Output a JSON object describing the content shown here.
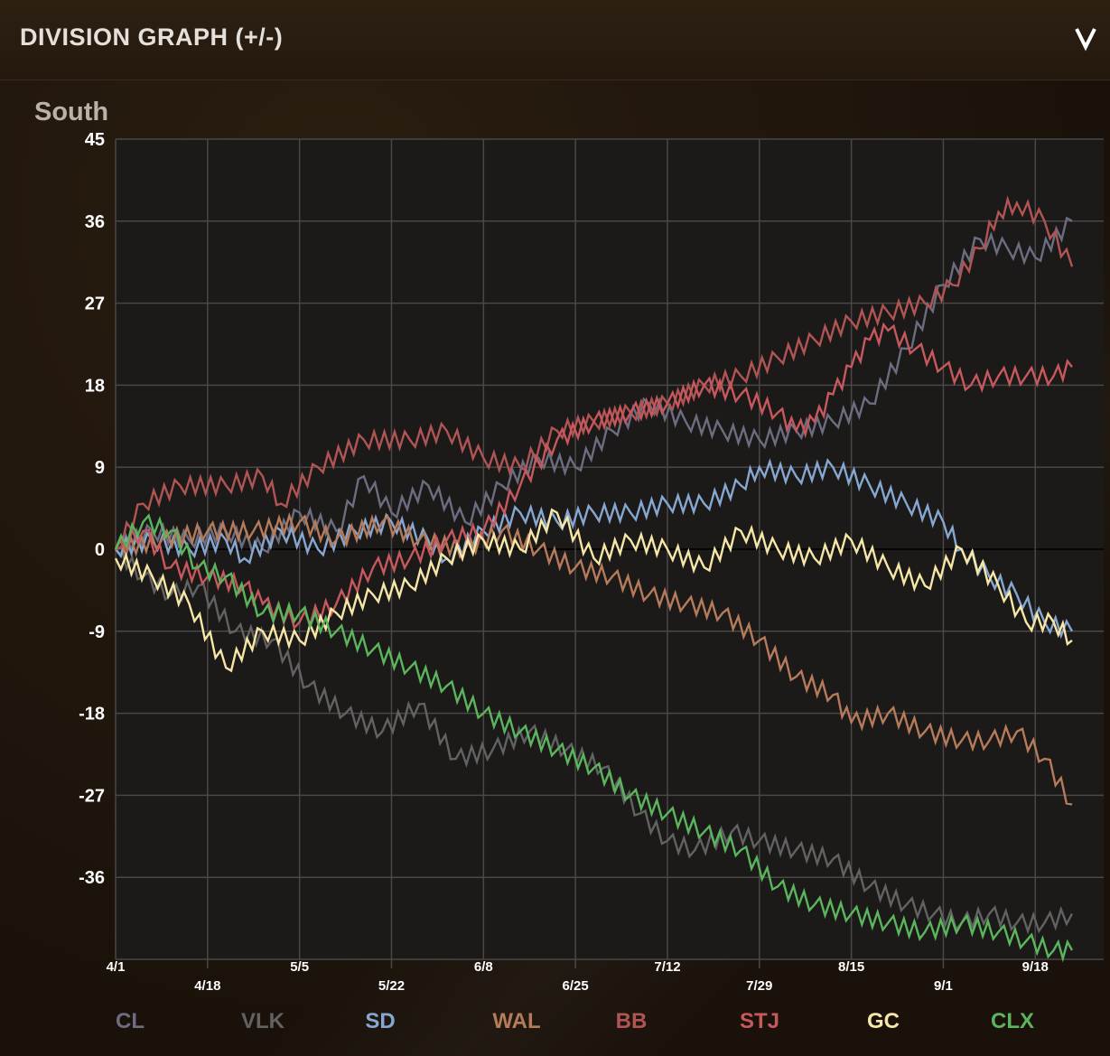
{
  "header": {
    "title": "DIVISION GRAPH (+/-)"
  },
  "subtitle": "South",
  "chart_data": {
    "type": "line",
    "xlabel": "",
    "ylabel": "",
    "yticks": [
      "45",
      "36",
      "27",
      "18",
      "9",
      "0",
      "-9",
      "-18",
      "-27",
      "-36"
    ],
    "ylim": [
      -45,
      45
    ],
    "xlim": [
      0,
      104
    ],
    "xtick_labels": [
      {
        "label": "4/1",
        "x": 0,
        "row": 0
      },
      {
        "label": "4/18",
        "x": 10,
        "row": 1
      },
      {
        "label": "5/5",
        "x": 20,
        "row": 0
      },
      {
        "label": "5/22",
        "x": 30,
        "row": 1
      },
      {
        "label": "6/8",
        "x": 40,
        "row": 0
      },
      {
        "label": "6/25",
        "x": 50,
        "row": 1
      },
      {
        "label": "7/12",
        "x": 60,
        "row": 0
      },
      {
        "label": "7/29",
        "x": 70,
        "row": 1
      },
      {
        "label": "8/15",
        "x": 80,
        "row": 0
      },
      {
        "label": "9/1",
        "x": 90,
        "row": 1
      },
      {
        "label": "9/18",
        "x": 100,
        "row": 0
      }
    ],
    "zero_line": true,
    "grid": true,
    "legend_position": "bottom",
    "series": [
      {
        "name": "CL",
        "color": "#6c6d80",
        "points": [
          [
            0,
            0
          ],
          [
            4,
            2
          ],
          [
            8,
            1
          ],
          [
            12,
            2
          ],
          [
            16,
            0
          ],
          [
            20,
            4
          ],
          [
            24,
            2
          ],
          [
            27,
            8
          ],
          [
            30,
            4
          ],
          [
            34,
            7
          ],
          [
            38,
            3
          ],
          [
            42,
            7
          ],
          [
            46,
            10
          ],
          [
            50,
            9
          ],
          [
            54,
            13
          ],
          [
            58,
            16
          ],
          [
            62,
            14
          ],
          [
            66,
            13
          ],
          [
            70,
            12
          ],
          [
            74,
            13
          ],
          [
            78,
            14
          ],
          [
            82,
            16
          ],
          [
            86,
            22
          ],
          [
            90,
            29
          ],
          [
            94,
            34
          ],
          [
            97,
            33
          ],
          [
            100,
            32
          ],
          [
            104,
            36
          ]
        ]
      },
      {
        "name": "VLK",
        "color": "#626262",
        "points": [
          [
            0,
            0
          ],
          [
            3,
            -3
          ],
          [
            6,
            -5
          ],
          [
            9,
            -4
          ],
          [
            13,
            -9
          ],
          [
            17,
            -10
          ],
          [
            21,
            -15
          ],
          [
            25,
            -18
          ],
          [
            29,
            -20
          ],
          [
            33,
            -17
          ],
          [
            37,
            -23
          ],
          [
            41,
            -22
          ],
          [
            45,
            -20
          ],
          [
            49,
            -22
          ],
          [
            53,
            -24
          ],
          [
            57,
            -29
          ],
          [
            60,
            -32
          ],
          [
            63,
            -33
          ],
          [
            67,
            -31
          ],
          [
            70,
            -32
          ],
          [
            74,
            -33
          ],
          [
            78,
            -34
          ],
          [
            82,
            -37
          ],
          [
            86,
            -39
          ],
          [
            89,
            -40
          ],
          [
            92,
            -41
          ],
          [
            95,
            -40
          ],
          [
            98,
            -41
          ],
          [
            101,
            -41
          ],
          [
            104,
            -40
          ]
        ]
      },
      {
        "name": "SD",
        "color": "#87a7d3",
        "points": [
          [
            0,
            0
          ],
          [
            4,
            1
          ],
          [
            8,
            0
          ],
          [
            12,
            1
          ],
          [
            14,
            -1
          ],
          [
            18,
            2
          ],
          [
            22,
            0
          ],
          [
            26,
            2
          ],
          [
            30,
            3
          ],
          [
            34,
            1
          ],
          [
            36,
            -1
          ],
          [
            40,
            2
          ],
          [
            44,
            4
          ],
          [
            48,
            3
          ],
          [
            52,
            4
          ],
          [
            56,
            4
          ],
          [
            60,
            5
          ],
          [
            64,
            5
          ],
          [
            68,
            7
          ],
          [
            70,
            9
          ],
          [
            74,
            8
          ],
          [
            78,
            9
          ],
          [
            82,
            7
          ],
          [
            86,
            5
          ],
          [
            90,
            3
          ],
          [
            92,
            0
          ],
          [
            95,
            -3
          ],
          [
            98,
            -5
          ],
          [
            101,
            -8
          ],
          [
            104,
            -9
          ]
        ]
      },
      {
        "name": "WAL",
        "color": "#b57b5a",
        "points": [
          [
            0,
            0
          ],
          [
            5,
            1
          ],
          [
            10,
            2
          ],
          [
            15,
            2
          ],
          [
            20,
            3
          ],
          [
            24,
            1
          ],
          [
            29,
            3
          ],
          [
            33,
            1
          ],
          [
            38,
            0
          ],
          [
            42,
            2
          ],
          [
            46,
            0
          ],
          [
            50,
            -2
          ],
          [
            54,
            -3
          ],
          [
            58,
            -5
          ],
          [
            62,
            -6
          ],
          [
            66,
            -7
          ],
          [
            70,
            -10
          ],
          [
            74,
            -14
          ],
          [
            78,
            -16
          ],
          [
            80,
            -19
          ],
          [
            84,
            -18
          ],
          [
            88,
            -20
          ],
          [
            92,
            -21
          ],
          [
            95,
            -21
          ],
          [
            98,
            -20
          ],
          [
            101,
            -23
          ],
          [
            104,
            -28
          ]
        ]
      },
      {
        "name": "BB",
        "color": "#b05454",
        "points": [
          [
            0,
            0
          ],
          [
            3,
            5
          ],
          [
            7,
            7
          ],
          [
            12,
            7
          ],
          [
            16,
            8
          ],
          [
            18,
            5
          ],
          [
            22,
            9
          ],
          [
            27,
            12
          ],
          [
            32,
            12
          ],
          [
            36,
            13
          ],
          [
            40,
            10
          ],
          [
            44,
            9
          ],
          [
            48,
            13
          ],
          [
            52,
            14
          ],
          [
            56,
            15
          ],
          [
            60,
            16
          ],
          [
            64,
            18
          ],
          [
            68,
            19
          ],
          [
            72,
            21
          ],
          [
            76,
            23
          ],
          [
            80,
            25
          ],
          [
            84,
            26
          ],
          [
            88,
            27
          ],
          [
            91,
            29
          ],
          [
            94,
            33
          ],
          [
            96,
            37
          ],
          [
            98,
            38
          ],
          [
            101,
            36
          ],
          [
            104,
            31
          ]
        ]
      },
      {
        "name": "STJ",
        "color": "#c7585d",
        "points": [
          [
            0,
            0
          ],
          [
            3,
            2
          ],
          [
            6,
            -2
          ],
          [
            10,
            -3
          ],
          [
            14,
            -4
          ],
          [
            16,
            -6
          ],
          [
            20,
            -8
          ],
          [
            24,
            -6
          ],
          [
            28,
            -2
          ],
          [
            32,
            -1
          ],
          [
            36,
            1
          ],
          [
            40,
            2
          ],
          [
            44,
            7
          ],
          [
            48,
            12
          ],
          [
            52,
            14
          ],
          [
            56,
            15
          ],
          [
            60,
            16
          ],
          [
            64,
            18
          ],
          [
            68,
            17
          ],
          [
            72,
            15
          ],
          [
            74,
            13
          ],
          [
            76,
            14
          ],
          [
            78,
            17
          ],
          [
            80,
            20
          ],
          [
            82,
            23
          ],
          [
            84,
            24
          ],
          [
            87,
            22
          ],
          [
            90,
            20
          ],
          [
            93,
            18
          ],
          [
            96,
            19
          ],
          [
            99,
            19
          ],
          [
            102,
            19
          ],
          [
            104,
            20
          ]
        ]
      },
      {
        "name": "GC",
        "color": "#f6e7a6",
        "points": [
          [
            0,
            -1
          ],
          [
            4,
            -3
          ],
          [
            8,
            -6
          ],
          [
            12,
            -13
          ],
          [
            16,
            -9
          ],
          [
            20,
            -10
          ],
          [
            24,
            -7
          ],
          [
            28,
            -5
          ],
          [
            32,
            -4
          ],
          [
            36,
            -1
          ],
          [
            40,
            1
          ],
          [
            44,
            0
          ],
          [
            48,
            4
          ],
          [
            52,
            -1
          ],
          [
            56,
            1
          ],
          [
            60,
            0
          ],
          [
            64,
            -2
          ],
          [
            68,
            2
          ],
          [
            72,
            0
          ],
          [
            76,
            -1
          ],
          [
            80,
            1
          ],
          [
            84,
            -2
          ],
          [
            88,
            -4
          ],
          [
            92,
            0
          ],
          [
            96,
            -4
          ],
          [
            99,
            -8
          ],
          [
            102,
            -8
          ],
          [
            104,
            -10
          ]
        ]
      },
      {
        "name": "CLX",
        "color": "#5bb55d",
        "points": [
          [
            0,
            0
          ],
          [
            3,
            3
          ],
          [
            6,
            2
          ],
          [
            9,
            -2
          ],
          [
            12,
            -3
          ],
          [
            16,
            -7
          ],
          [
            20,
            -7
          ],
          [
            24,
            -9
          ],
          [
            28,
            -11
          ],
          [
            32,
            -13
          ],
          [
            36,
            -15
          ],
          [
            40,
            -18
          ],
          [
            44,
            -20
          ],
          [
            48,
            -22
          ],
          [
            52,
            -24
          ],
          [
            56,
            -27
          ],
          [
            60,
            -29
          ],
          [
            64,
            -31
          ],
          [
            68,
            -33
          ],
          [
            72,
            -37
          ],
          [
            76,
            -39
          ],
          [
            80,
            -40
          ],
          [
            84,
            -41
          ],
          [
            88,
            -42
          ],
          [
            92,
            -41
          ],
          [
            96,
            -42
          ],
          [
            99,
            -43
          ],
          [
            102,
            -44
          ],
          [
            104,
            -44
          ]
        ]
      }
    ]
  }
}
